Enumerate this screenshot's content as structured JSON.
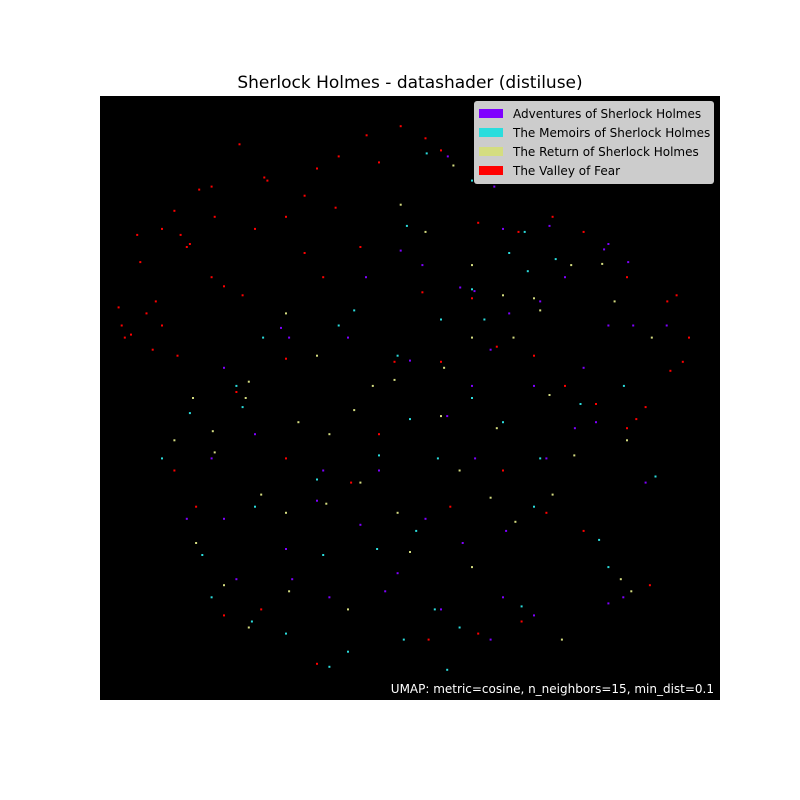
{
  "chart_data": {
    "type": "scatter",
    "title": "Sherlock Holmes - datashader (distiluse)",
    "xlabel": "",
    "ylabel": "",
    "xlim": [
      0,
      100
    ],
    "ylim": [
      0,
      100
    ],
    "background": "#000000",
    "annotation": "UMAP: metric=cosine, n_neighbors=15, min_dist=0.1",
    "legend_position": "top-right",
    "series": [
      {
        "name": "Adventures of Sherlock Holmes",
        "color": "#7f00ff",
        "points": [
          [
            56.1,
            90.0
          ],
          [
            66.5,
            91.5
          ],
          [
            63.6,
            85.0
          ],
          [
            72.5,
            78.5
          ],
          [
            82.0,
            75.5
          ],
          [
            85.2,
            72.5
          ],
          [
            65.0,
            78.0
          ],
          [
            58.1,
            68.3
          ],
          [
            71.0,
            66.0
          ],
          [
            82.0,
            62.0
          ],
          [
            78.0,
            55.0
          ],
          [
            60.0,
            52.0
          ],
          [
            50.0,
            56.2
          ],
          [
            40.0,
            60.0
          ],
          [
            30.5,
            60.0
          ],
          [
            29.2,
            61.6
          ],
          [
            20.0,
            55.0
          ],
          [
            42.9,
            70.0
          ],
          [
            48.5,
            74.4
          ],
          [
            52.0,
            72.0
          ],
          [
            63.0,
            58.0
          ],
          [
            70.0,
            52.0
          ],
          [
            86.0,
            62.0
          ],
          [
            81.3,
            74.6
          ],
          [
            75.0,
            70.0
          ],
          [
            66.0,
            64.0
          ],
          [
            60.4,
            67.7
          ],
          [
            56.0,
            47.0
          ],
          [
            45.0,
            38.0
          ],
          [
            36.0,
            38.0
          ],
          [
            25.0,
            44.0
          ],
          [
            18.0,
            40.0
          ],
          [
            14.0,
            30.0
          ],
          [
            22.0,
            20.0
          ],
          [
            31.0,
            20.0
          ],
          [
            37.0,
            17.0
          ],
          [
            46.0,
            18.0
          ],
          [
            55.0,
            15.0
          ],
          [
            63.0,
            10.0
          ],
          [
            65.0,
            17.0
          ],
          [
            70.0,
            14.0
          ],
          [
            82.0,
            16.0
          ],
          [
            84.4,
            17.0
          ],
          [
            88.0,
            36.0
          ],
          [
            80.0,
            46.0
          ],
          [
            91.4,
            62.0
          ],
          [
            65.5,
            28.0
          ],
          [
            60.5,
            40.0
          ],
          [
            52.5,
            30.0
          ],
          [
            42.0,
            29.0
          ],
          [
            30.0,
            25.0
          ],
          [
            20.0,
            30.0
          ],
          [
            35.0,
            33.0
          ],
          [
            58.5,
            26.0
          ],
          [
            48.0,
            21.0
          ],
          [
            72.0,
            40.0
          ],
          [
            76.6,
            45.0
          ]
        ]
      },
      {
        "name": "The Memoirs of Sherlock Holmes",
        "color": "#2adddd",
        "points": [
          [
            52.7,
            90.5
          ],
          [
            60.0,
            86.0
          ],
          [
            68.5,
            77.5
          ],
          [
            73.5,
            73.0
          ],
          [
            66.0,
            74.0
          ],
          [
            60.0,
            68.0
          ],
          [
            55.0,
            63.0
          ],
          [
            48.0,
            57.0
          ],
          [
            38.5,
            62.0
          ],
          [
            26.3,
            60.0
          ],
          [
            22.0,
            52.0
          ],
          [
            14.5,
            47.5
          ],
          [
            10.0,
            40.0
          ],
          [
            25.0,
            32.0
          ],
          [
            35.0,
            36.5
          ],
          [
            45.0,
            40.5
          ],
          [
            50.0,
            46.5
          ],
          [
            60.0,
            50.0
          ],
          [
            65.0,
            46.0
          ],
          [
            71.0,
            40.0
          ],
          [
            77.5,
            49.0
          ],
          [
            84.5,
            52.0
          ],
          [
            89.6,
            37.0
          ],
          [
            80.5,
            26.5
          ],
          [
            82.0,
            22.0
          ],
          [
            68.0,
            15.5
          ],
          [
            58.0,
            12.0
          ],
          [
            49.0,
            10.0
          ],
          [
            40.0,
            8.0
          ],
          [
            30.0,
            11.0
          ],
          [
            24.5,
            13.0
          ],
          [
            18.0,
            17.0
          ],
          [
            16.5,
            24.0
          ],
          [
            36.0,
            24.0
          ],
          [
            44.7,
            25.0
          ],
          [
            51.0,
            28.0
          ],
          [
            54.5,
            40.0
          ],
          [
            70.0,
            32.0
          ],
          [
            62.0,
            63.0
          ],
          [
            69.0,
            71.0
          ],
          [
            49.5,
            78.5
          ],
          [
            41.0,
            64.5
          ],
          [
            23.0,
            48.5
          ],
          [
            54.0,
            15.0
          ],
          [
            56.0,
            5.0
          ],
          [
            37.0,
            5.5
          ]
        ]
      },
      {
        "name": "The Return of Sherlock Holmes",
        "color": "#d4dd80",
        "points": [
          [
            57.0,
            88.5
          ],
          [
            48.5,
            82.0
          ],
          [
            52.5,
            77.5
          ],
          [
            60.0,
            72.0
          ],
          [
            65.0,
            67.0
          ],
          [
            70.0,
            66.5
          ],
          [
            76.0,
            72.0
          ],
          [
            81.0,
            72.2
          ],
          [
            83.0,
            66.0
          ],
          [
            89.0,
            60.0
          ],
          [
            85.0,
            43.0
          ],
          [
            72.5,
            50.5
          ],
          [
            66.7,
            60.0
          ],
          [
            60.0,
            60.0
          ],
          [
            55.5,
            55.0
          ],
          [
            47.5,
            53.0
          ],
          [
            41.0,
            48.0
          ],
          [
            37.0,
            44.0
          ],
          [
            32.0,
            46.0
          ],
          [
            23.5,
            50.0
          ],
          [
            15.0,
            50.0
          ],
          [
            12.0,
            43.0
          ],
          [
            18.5,
            41.0
          ],
          [
            26.0,
            34.0
          ],
          [
            30.0,
            31.0
          ],
          [
            36.5,
            32.5
          ],
          [
            42.0,
            36.0
          ],
          [
            48.0,
            31.0
          ],
          [
            58.0,
            38.0
          ],
          [
            63.0,
            33.5
          ],
          [
            67.0,
            29.5
          ],
          [
            73.0,
            34.0
          ],
          [
            76.5,
            40.5
          ],
          [
            84.0,
            20.0
          ],
          [
            85.7,
            18.0
          ],
          [
            74.5,
            10.0
          ],
          [
            60.0,
            22.0
          ],
          [
            50.0,
            24.5
          ],
          [
            40.0,
            15.0
          ],
          [
            30.5,
            18.0
          ],
          [
            24.0,
            12.0
          ],
          [
            20.0,
            19.0
          ],
          [
            15.5,
            26.0
          ],
          [
            18.2,
            44.5
          ],
          [
            24.0,
            52.7
          ],
          [
            30.0,
            64.0
          ],
          [
            35.0,
            57.0
          ],
          [
            44.0,
            52.0
          ],
          [
            55.0,
            47.0
          ],
          [
            64.0,
            45.0
          ],
          [
            71.0,
            64.5
          ]
        ]
      },
      {
        "name": "The Valley of Fear",
        "color": "#ff0000",
        "points": [
          [
            38.5,
            90.0
          ],
          [
            43.0,
            93.5
          ],
          [
            48.5,
            95.0
          ],
          [
            52.5,
            93.0
          ],
          [
            55.0,
            91.0
          ],
          [
            45.0,
            89.0
          ],
          [
            35.0,
            88.0
          ],
          [
            33.0,
            83.5
          ],
          [
            27.0,
            86.0
          ],
          [
            22.5,
            92.0
          ],
          [
            38.0,
            81.5
          ],
          [
            30.0,
            80.0
          ],
          [
            25.0,
            78.0
          ],
          [
            26.5,
            86.5
          ],
          [
            18.0,
            85.0
          ],
          [
            16.0,
            84.5
          ],
          [
            12.0,
            81.0
          ],
          [
            18.5,
            80.0
          ],
          [
            10.0,
            78.0
          ],
          [
            6.0,
            77.0
          ],
          [
            13.0,
            77.0
          ],
          [
            14.5,
            75.5
          ],
          [
            6.5,
            72.5
          ],
          [
            5.0,
            60.5
          ],
          [
            9.0,
            66.0
          ],
          [
            3.0,
            65.0
          ],
          [
            4.0,
            60.0
          ],
          [
            8.5,
            58.0
          ],
          [
            3.5,
            62.0
          ],
          [
            7.5,
            64.0
          ],
          [
            10.0,
            62.0
          ],
          [
            12.5,
            57.0
          ],
          [
            14.0,
            75.0
          ],
          [
            18.0,
            70.0
          ],
          [
            20.0,
            68.5
          ],
          [
            23.0,
            67.0
          ],
          [
            36.0,
            70.0
          ],
          [
            52.0,
            67.5
          ],
          [
            60.0,
            66.5
          ],
          [
            64.0,
            58.5
          ],
          [
            70.0,
            57.0
          ],
          [
            75.0,
            52.0
          ],
          [
            80.0,
            49.0
          ],
          [
            85.0,
            45.0
          ],
          [
            86.5,
            46.5
          ],
          [
            88.0,
            48.5
          ],
          [
            92.0,
            54.5
          ],
          [
            94.0,
            56.0
          ],
          [
            95.0,
            60.0
          ],
          [
            93.0,
            67.0
          ],
          [
            91.5,
            66.0
          ],
          [
            85.0,
            70.0
          ],
          [
            55.0,
            56.0
          ],
          [
            47.5,
            56.0
          ],
          [
            30.0,
            56.5
          ],
          [
            22.0,
            51.0
          ],
          [
            12.0,
            38.0
          ],
          [
            15.5,
            32.0
          ],
          [
            20.0,
            14.0
          ],
          [
            26.0,
            15.0
          ],
          [
            35.0,
            6.0
          ],
          [
            53.0,
            10.0
          ],
          [
            61.0,
            11.0
          ],
          [
            68.0,
            13.0
          ],
          [
            72.0,
            31.0
          ],
          [
            78.0,
            28.0
          ],
          [
            65.0,
            38.0
          ],
          [
            56.5,
            32.0
          ],
          [
            45.0,
            44.0
          ],
          [
            40.5,
            36.0
          ],
          [
            30.0,
            40.0
          ],
          [
            88.7,
            19.0
          ],
          [
            61.0,
            79.0
          ],
          [
            67.5,
            77.5
          ],
          [
            73.0,
            80.0
          ],
          [
            78.0,
            77.5
          ],
          [
            42.0,
            75.0
          ],
          [
            33.0,
            74.0
          ]
        ]
      }
    ]
  }
}
